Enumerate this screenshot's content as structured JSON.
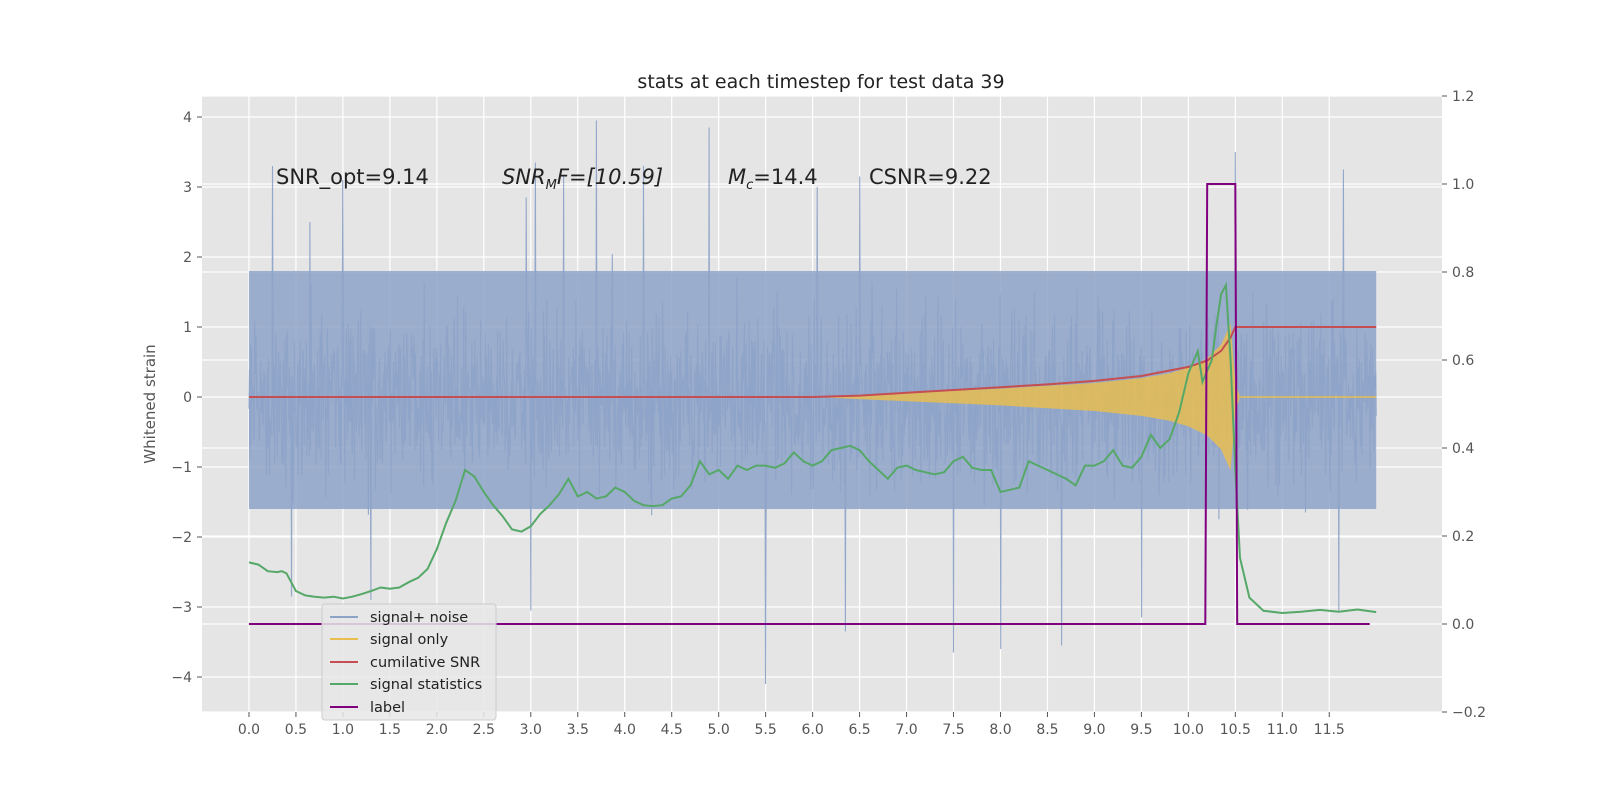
{
  "chart_data": {
    "type": "line",
    "title": "stats at each timestep for test data 39",
    "ylabel": "Whitened strain",
    "xlabel": "",
    "xlim": [
      -0.5,
      12.7
    ],
    "ylim": [
      -4.5,
      4.3
    ],
    "y2lim": [
      -0.2,
      1.2
    ],
    "x_ticks": [
      0.0,
      0.5,
      1.0,
      1.5,
      2.0,
      2.5,
      3.0,
      3.5,
      4.0,
      4.5,
      5.0,
      5.5,
      6.0,
      6.5,
      7.0,
      7.5,
      8.0,
      8.5,
      9.0,
      9.5,
      10.0,
      10.5,
      11.0,
      11.5
    ],
    "x_tick_labels": [
      "0.0",
      "0.5",
      "1.0",
      "1.5",
      "2.0",
      "2.5",
      "3.0",
      "3.5",
      "4.0",
      "4.5",
      "5.0",
      "5.5",
      "6.0",
      "6.5",
      "7.0",
      "7.5",
      "8.0",
      "8.5",
      "9.0",
      "9.5",
      "10.0",
      "10.5",
      "11.0",
      "11.5"
    ],
    "y_ticks": [
      -4,
      -3,
      -2,
      -1,
      0,
      1,
      2,
      3,
      4
    ],
    "y_tick_labels": [
      "−4",
      "−3",
      "−2",
      "−1",
      "0",
      "1",
      "2",
      "3",
      "4"
    ],
    "y2_ticks": [
      -0.2,
      0.0,
      0.2,
      0.4,
      0.6,
      0.8,
      1.0,
      1.2
    ],
    "y2_tick_labels": [
      "−0.2",
      "0.0",
      "0.2",
      "0.4",
      "0.6",
      "0.8",
      "1.0",
      "1.2"
    ],
    "grid": true,
    "legend_position": "lower-left",
    "annotations": [
      {
        "text": "SNR_opt=9.14",
        "x": 0.2,
        "y": 3.1
      },
      {
        "text": "SNR_MF=[10.59]",
        "x": 2.6,
        "y": 3.1,
        "main": "SNR",
        "sub": "M",
        "rest": "F=[10.59]"
      },
      {
        "text": "M_c=14.4",
        "x": 5.0,
        "y": 3.1,
        "main": "M",
        "sub": "c",
        "rest": "=14.4"
      },
      {
        "text": "CSNR=9.22",
        "x": 6.5,
        "y": 3.1
      }
    ],
    "series": [
      {
        "name": "signal+ noise",
        "color": "#8ea3c8",
        "axis": "left",
        "x_range": [
          0.0,
          12.0
        ],
        "envelope": {
          "typical_low": -1.6,
          "typical_high": 1.8,
          "extremes": [
            {
              "x": 0.25,
              "y": 3.3
            },
            {
              "x": 0.65,
              "y": 2.5
            },
            {
              "x": 1.0,
              "y": 3.1
            },
            {
              "x": 2.95,
              "y": 2.85
            },
            {
              "x": 3.05,
              "y": 3.35
            },
            {
              "x": 3.35,
              "y": 3.15
            },
            {
              "x": 3.7,
              "y": 3.95
            },
            {
              "x": 4.2,
              "y": 3.3
            },
            {
              "x": 4.9,
              "y": 3.85
            },
            {
              "x": 6.05,
              "y": 3.0
            },
            {
              "x": 6.5,
              "y": 3.15
            },
            {
              "x": 10.5,
              "y": 3.5
            },
            {
              "x": 11.65,
              "y": 3.25
            },
            {
              "x": 5.5,
              "y": -4.1
            },
            {
              "x": 6.35,
              "y": -3.35
            },
            {
              "x": 7.5,
              "y": -3.65
            },
            {
              "x": 8.0,
              "y": -3.6
            },
            {
              "x": 8.65,
              "y": -3.55
            },
            {
              "x": 3.0,
              "y": -3.05
            },
            {
              "x": 0.45,
              "y": -2.85
            },
            {
              "x": 1.3,
              "y": -2.9
            },
            {
              "x": 11.6,
              "y": -3.05
            },
            {
              "x": 9.5,
              "y": -3.15
            }
          ]
        }
      },
      {
        "name": "signal only",
        "color": "#e8bd51",
        "axis": "left",
        "envelope_amplitude": [
          {
            "x": 6.0,
            "y": 0.0
          },
          {
            "x": 6.5,
            "y": 0.03
          },
          {
            "x": 7.0,
            "y": 0.06
          },
          {
            "x": 7.5,
            "y": 0.09
          },
          {
            "x": 8.0,
            "y": 0.12
          },
          {
            "x": 8.5,
            "y": 0.16
          },
          {
            "x": 9.0,
            "y": 0.2
          },
          {
            "x": 9.5,
            "y": 0.27
          },
          {
            "x": 9.8,
            "y": 0.34
          },
          {
            "x": 10.0,
            "y": 0.42
          },
          {
            "x": 10.2,
            "y": 0.55
          },
          {
            "x": 10.35,
            "y": 0.75
          },
          {
            "x": 10.45,
            "y": 1.05
          },
          {
            "x": 10.5,
            "y": 0.2
          },
          {
            "x": 10.55,
            "y": 0.0
          },
          {
            "x": 12.0,
            "y": 0.0
          }
        ]
      },
      {
        "name": "cumilative SNR",
        "color": "#c44e52",
        "axis": "left",
        "points": [
          {
            "x": 0.0,
            "y": 0.0
          },
          {
            "x": 5.0,
            "y": 0.0
          },
          {
            "x": 6.0,
            "y": 0.0
          },
          {
            "x": 6.5,
            "y": 0.02
          },
          {
            "x": 7.0,
            "y": 0.06
          },
          {
            "x": 7.5,
            "y": 0.1
          },
          {
            "x": 8.0,
            "y": 0.14
          },
          {
            "x": 8.5,
            "y": 0.18
          },
          {
            "x": 9.0,
            "y": 0.23
          },
          {
            "x": 9.5,
            "y": 0.3
          },
          {
            "x": 10.0,
            "y": 0.43
          },
          {
            "x": 10.2,
            "y": 0.52
          },
          {
            "x": 10.35,
            "y": 0.66
          },
          {
            "x": 10.45,
            "y": 0.85
          },
          {
            "x": 10.5,
            "y": 1.0
          },
          {
            "x": 12.0,
            "y": 1.0
          }
        ]
      },
      {
        "name": "signal statistics",
        "color": "#55a868",
        "axis": "right",
        "points": [
          {
            "x": 0.0,
            "y": 0.14
          },
          {
            "x": 0.1,
            "y": 0.135
          },
          {
            "x": 0.2,
            "y": 0.12
          },
          {
            "x": 0.3,
            "y": 0.118
          },
          {
            "x": 0.35,
            "y": 0.12
          },
          {
            "x": 0.4,
            "y": 0.115
          },
          {
            "x": 0.45,
            "y": 0.095
          },
          {
            "x": 0.5,
            "y": 0.075
          },
          {
            "x": 0.6,
            "y": 0.065
          },
          {
            "x": 0.7,
            "y": 0.062
          },
          {
            "x": 0.8,
            "y": 0.06
          },
          {
            "x": 0.9,
            "y": 0.062
          },
          {
            "x": 1.0,
            "y": 0.058
          },
          {
            "x": 1.1,
            "y": 0.062
          },
          {
            "x": 1.2,
            "y": 0.068
          },
          {
            "x": 1.3,
            "y": 0.075
          },
          {
            "x": 1.4,
            "y": 0.083
          },
          {
            "x": 1.5,
            "y": 0.08
          },
          {
            "x": 1.6,
            "y": 0.083
          },
          {
            "x": 1.7,
            "y": 0.095
          },
          {
            "x": 1.8,
            "y": 0.105
          },
          {
            "x": 1.9,
            "y": 0.125
          },
          {
            "x": 2.0,
            "y": 0.17
          },
          {
            "x": 2.1,
            "y": 0.23
          },
          {
            "x": 2.2,
            "y": 0.28
          },
          {
            "x": 2.3,
            "y": 0.35
          },
          {
            "x": 2.4,
            "y": 0.335
          },
          {
            "x": 2.5,
            "y": 0.3
          },
          {
            "x": 2.6,
            "y": 0.27
          },
          {
            "x": 2.7,
            "y": 0.245
          },
          {
            "x": 2.8,
            "y": 0.215
          },
          {
            "x": 2.9,
            "y": 0.21
          },
          {
            "x": 3.0,
            "y": 0.222
          },
          {
            "x": 3.1,
            "y": 0.25
          },
          {
            "x": 3.2,
            "y": 0.27
          },
          {
            "x": 3.3,
            "y": 0.295
          },
          {
            "x": 3.4,
            "y": 0.33
          },
          {
            "x": 3.5,
            "y": 0.29
          },
          {
            "x": 3.6,
            "y": 0.3
          },
          {
            "x": 3.7,
            "y": 0.285
          },
          {
            "x": 3.8,
            "y": 0.29
          },
          {
            "x": 3.9,
            "y": 0.31
          },
          {
            "x": 4.0,
            "y": 0.3
          },
          {
            "x": 4.1,
            "y": 0.28
          },
          {
            "x": 4.2,
            "y": 0.27
          },
          {
            "x": 4.3,
            "y": 0.268
          },
          {
            "x": 4.4,
            "y": 0.27
          },
          {
            "x": 4.5,
            "y": 0.285
          },
          {
            "x": 4.6,
            "y": 0.29
          },
          {
            "x": 4.7,
            "y": 0.315
          },
          {
            "x": 4.8,
            "y": 0.37
          },
          {
            "x": 4.9,
            "y": 0.34
          },
          {
            "x": 5.0,
            "y": 0.35
          },
          {
            "x": 5.1,
            "y": 0.33
          },
          {
            "x": 5.2,
            "y": 0.36
          },
          {
            "x": 5.3,
            "y": 0.35
          },
          {
            "x": 5.4,
            "y": 0.36
          },
          {
            "x": 5.5,
            "y": 0.36
          },
          {
            "x": 5.6,
            "y": 0.355
          },
          {
            "x": 5.7,
            "y": 0.365
          },
          {
            "x": 5.8,
            "y": 0.39
          },
          {
            "x": 5.9,
            "y": 0.37
          },
          {
            "x": 6.0,
            "y": 0.36
          },
          {
            "x": 6.1,
            "y": 0.37
          },
          {
            "x": 6.2,
            "y": 0.395
          },
          {
            "x": 6.3,
            "y": 0.4
          },
          {
            "x": 6.4,
            "y": 0.405
          },
          {
            "x": 6.5,
            "y": 0.395
          },
          {
            "x": 6.6,
            "y": 0.37
          },
          {
            "x": 6.7,
            "y": 0.35
          },
          {
            "x": 6.8,
            "y": 0.33
          },
          {
            "x": 6.9,
            "y": 0.355
          },
          {
            "x": 7.0,
            "y": 0.36
          },
          {
            "x": 7.1,
            "y": 0.35
          },
          {
            "x": 7.2,
            "y": 0.345
          },
          {
            "x": 7.3,
            "y": 0.34
          },
          {
            "x": 7.4,
            "y": 0.345
          },
          {
            "x": 7.5,
            "y": 0.37
          },
          {
            "x": 7.6,
            "y": 0.38
          },
          {
            "x": 7.7,
            "y": 0.355
          },
          {
            "x": 7.8,
            "y": 0.35
          },
          {
            "x": 7.9,
            "y": 0.35
          },
          {
            "x": 8.0,
            "y": 0.3
          },
          {
            "x": 8.1,
            "y": 0.305
          },
          {
            "x": 8.2,
            "y": 0.31
          },
          {
            "x": 8.3,
            "y": 0.37
          },
          {
            "x": 8.4,
            "y": 0.36
          },
          {
            "x": 8.5,
            "y": 0.35
          },
          {
            "x": 8.6,
            "y": 0.34
          },
          {
            "x": 8.7,
            "y": 0.33
          },
          {
            "x": 8.8,
            "y": 0.315
          },
          {
            "x": 8.9,
            "y": 0.36
          },
          {
            "x": 9.0,
            "y": 0.36
          },
          {
            "x": 9.1,
            "y": 0.37
          },
          {
            "x": 9.2,
            "y": 0.395
          },
          {
            "x": 9.3,
            "y": 0.36
          },
          {
            "x": 9.4,
            "y": 0.355
          },
          {
            "x": 9.5,
            "y": 0.38
          },
          {
            "x": 9.6,
            "y": 0.43
          },
          {
            "x": 9.7,
            "y": 0.4
          },
          {
            "x": 9.8,
            "y": 0.42
          },
          {
            "x": 9.9,
            "y": 0.48
          },
          {
            "x": 10.0,
            "y": 0.57
          },
          {
            "x": 10.1,
            "y": 0.62
          },
          {
            "x": 10.15,
            "y": 0.55
          },
          {
            "x": 10.25,
            "y": 0.6
          },
          {
            "x": 10.3,
            "y": 0.68
          },
          {
            "x": 10.35,
            "y": 0.75
          },
          {
            "x": 10.4,
            "y": 0.77
          },
          {
            "x": 10.45,
            "y": 0.6
          },
          {
            "x": 10.5,
            "y": 0.35
          },
          {
            "x": 10.55,
            "y": 0.15
          },
          {
            "x": 10.65,
            "y": 0.06
          },
          {
            "x": 10.8,
            "y": 0.03
          },
          {
            "x": 11.0,
            "y": 0.025
          },
          {
            "x": 11.2,
            "y": 0.028
          },
          {
            "x": 11.4,
            "y": 0.032
          },
          {
            "x": 11.6,
            "y": 0.028
          },
          {
            "x": 11.8,
            "y": 0.033
          },
          {
            "x": 12.0,
            "y": 0.027
          }
        ]
      },
      {
        "name": "label",
        "color": "#800080",
        "axis": "right",
        "points": [
          {
            "x": 0.0,
            "y": 0.0
          },
          {
            "x": 10.18,
            "y": 0.0
          },
          {
            "x": 10.2,
            "y": 1.0
          },
          {
            "x": 10.5,
            "y": 1.0
          },
          {
            "x": 10.52,
            "y": 0.0
          },
          {
            "x": 11.93,
            "y": 0.0
          }
        ]
      }
    ],
    "legend": [
      "signal+ noise",
      "signal only",
      "cumilative SNR",
      "signal statistics",
      "label"
    ]
  }
}
